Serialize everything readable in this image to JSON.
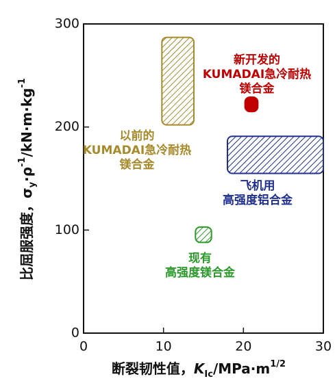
{
  "chart_data": {
    "type": "region",
    "x_label": [
      {
        "text": "断裂韧性值，"
      },
      {
        "text": "K",
        "style": "italic"
      },
      {
        "text": "Ic",
        "script": "sub"
      },
      {
        "text": "/MPa·m"
      },
      {
        "text": "1/2",
        "script": "sup"
      }
    ],
    "y_label": [
      {
        "text": "比屈服强度，σ"
      },
      {
        "text": "y",
        "script": "sub"
      },
      {
        "text": "·ρ"
      },
      {
        "text": "-1",
        "script": "sup"
      },
      {
        "text": "/kN·m·kg"
      },
      {
        "text": "-1",
        "script": "sup"
      }
    ],
    "xlim": [
      0,
      30
    ],
    "xticks": [
      0,
      10,
      20,
      30
    ],
    "ylim": [
      0,
      300
    ],
    "yticks": [
      0,
      100,
      200,
      300
    ],
    "regions": [
      {
        "label": [
          "以前的",
          "KUMADAI急冷耐热",
          "镁合金"
        ],
        "color": "#a68a2a",
        "hatch": true,
        "x": [
          9.8,
          13.8
        ],
        "y": [
          202,
          287
        ]
      },
      {
        "label": [
          "新开发的",
          "KUMADAI急冷耐热",
          "镁合金"
        ],
        "color": "#c00000",
        "hatch": false,
        "x": [
          20.2,
          21.8
        ],
        "y": [
          215,
          229
        ]
      },
      {
        "label": [
          "飞机用",
          "高强度铝合金"
        ],
        "color": "#1f2f8f",
        "hatch": true,
        "x": [
          18,
          30
        ],
        "y": [
          155,
          191
        ]
      },
      {
        "label": [
          "现有",
          "高强度镁合金"
        ],
        "color": "#2a9a2a",
        "hatch": true,
        "x": [
          14,
          16
        ],
        "y": [
          88,
          103
        ]
      }
    ]
  }
}
